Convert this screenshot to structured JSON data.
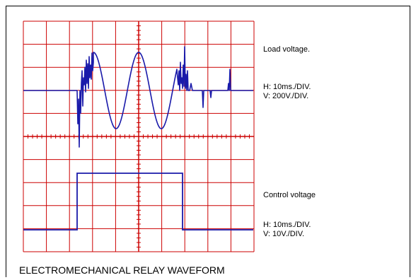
{
  "load_panel": {
    "title": "Load voltage.",
    "h_scale": "H: 10ms./DIV.",
    "v_scale": "V: 200V./DIV."
  },
  "control_panel": {
    "title": "Control voltage",
    "h_scale": "H: 10ms./DIV.",
    "v_scale": "V: 10V./DIV."
  },
  "caption": "ELECTROMECHANICAL RELAY WAVEFORM",
  "colors": {
    "grid": "#cc0000",
    "trace": "#1a1aaa",
    "frame": "#000000"
  },
  "grid": {
    "columns": 10,
    "rows": 10
  }
}
